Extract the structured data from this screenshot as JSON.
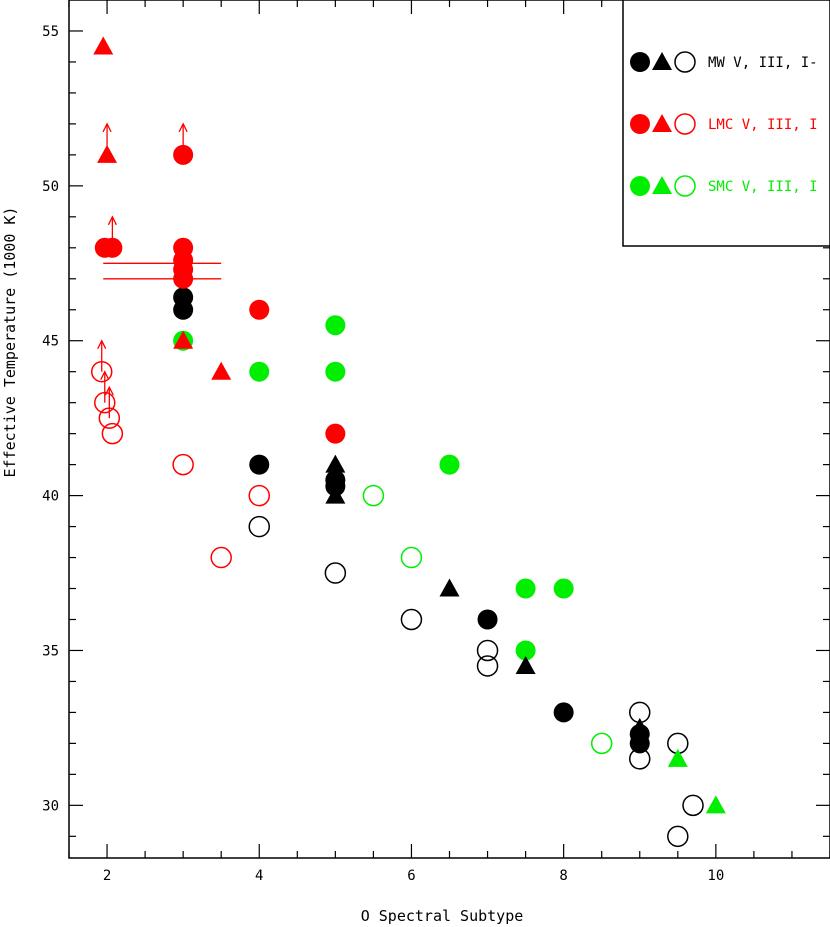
{
  "chart_data": {
    "type": "scatter",
    "title": "",
    "xlabel": "O Spectral Subtype",
    "ylabel": "Effective Temperature (1000 K)",
    "xlim": [
      1.5,
      11.5
    ],
    "ylim": [
      28.3,
      56
    ],
    "x_ticks": [
      2,
      4,
      6,
      8,
      10
    ],
    "y_ticks": [
      30,
      35,
      40,
      45,
      50,
      55
    ],
    "grid": false,
    "legend_position": "top-right",
    "legend": [
      {
        "label": "MW V, III, I-",
        "color": "#000000"
      },
      {
        "label": "LMC V, III, I",
        "color": "#ff0000"
      },
      {
        "label": "SMC V, III, I",
        "color": "#00ee00"
      }
    ],
    "series": [
      {
        "galaxy": "MW",
        "class": "V",
        "marker": "filled-circle",
        "color": "#000000",
        "points": [
          [
            3,
            46
          ],
          [
            3,
            46.4
          ],
          [
            4,
            41
          ],
          [
            5,
            40.5
          ],
          [
            5,
            40.3
          ],
          [
            7,
            36
          ],
          [
            8,
            33
          ],
          [
            9,
            32
          ],
          [
            9,
            32.3
          ]
        ]
      },
      {
        "galaxy": "MW",
        "class": "III",
        "marker": "triangle",
        "color": "#000000",
        "points": [
          [
            5,
            41
          ],
          [
            5,
            40.6
          ],
          [
            5,
            40
          ],
          [
            6.5,
            37
          ],
          [
            7.5,
            34.5
          ],
          [
            9,
            32.5
          ]
        ]
      },
      {
        "galaxy": "MW",
        "class": "I",
        "marker": "open-circle",
        "color": "#000000",
        "points": [
          [
            4,
            39
          ],
          [
            5,
            37.5
          ],
          [
            6,
            36
          ],
          [
            7,
            35
          ],
          [
            7,
            34.5
          ],
          [
            9,
            33
          ],
          [
            9,
            31.5
          ],
          [
            9.5,
            32
          ],
          [
            9.5,
            29
          ],
          [
            9.7,
            30
          ]
        ]
      },
      {
        "galaxy": "LMC",
        "class": "V",
        "marker": "filled-circle",
        "color": "#ff0000",
        "points": [
          [
            1.97,
            48
          ],
          [
            2.07,
            48
          ],
          [
            3,
            51
          ],
          [
            3,
            48
          ],
          [
            3,
            47.6
          ],
          [
            3,
            47.3
          ],
          [
            3,
            47
          ],
          [
            4,
            46
          ],
          [
            5,
            42
          ]
        ]
      },
      {
        "galaxy": "LMC",
        "class": "III",
        "marker": "triangle",
        "color": "#ff0000",
        "points": [
          [
            1.95,
            54.5
          ],
          [
            2,
            51
          ],
          [
            3,
            45
          ],
          [
            3.5,
            44
          ]
        ]
      },
      {
        "galaxy": "LMC",
        "class": "I",
        "marker": "open-circle",
        "color": "#ff0000",
        "points": [
          [
            1.93,
            44
          ],
          [
            1.97,
            43
          ],
          [
            2.03,
            42.5
          ],
          [
            2.07,
            42
          ],
          [
            3,
            41
          ],
          [
            4,
            40
          ],
          [
            3.5,
            38
          ]
        ]
      },
      {
        "galaxy": "SMC",
        "class": "V",
        "marker": "filled-circle",
        "color": "#00ee00",
        "points": [
          [
            3,
            45
          ],
          [
            4,
            44
          ],
          [
            5,
            45.5
          ],
          [
            5,
            44
          ],
          [
            6.5,
            41
          ],
          [
            7.5,
            37
          ],
          [
            8,
            37
          ],
          [
            7.5,
            35
          ]
        ]
      },
      {
        "galaxy": "SMC",
        "class": "III",
        "marker": "triangle",
        "color": "#00ee00",
        "points": [
          [
            9.5,
            31.5
          ],
          [
            10,
            30
          ]
        ]
      },
      {
        "galaxy": "SMC",
        "class": "I",
        "marker": "open-circle",
        "color": "#00ee00",
        "points": [
          [
            5.5,
            40
          ],
          [
            6,
            38
          ],
          [
            8.5,
            32
          ]
        ]
      }
    ],
    "lower_limit_arrows": [
      {
        "x": 2.0,
        "y": 51.0,
        "color": "#ff0000"
      },
      {
        "x": 3.0,
        "y": 51.0,
        "color": "#ff0000"
      },
      {
        "x": 2.07,
        "y": 48.0,
        "color": "#ff0000"
      },
      {
        "x": 1.93,
        "y": 44.0,
        "color": "#ff0000"
      },
      {
        "x": 1.97,
        "y": 43.0,
        "color": "#ff0000"
      },
      {
        "x": 2.03,
        "y": 42.5,
        "color": "#ff0000"
      }
    ],
    "horizontal_bars": [
      {
        "x1": 1.95,
        "x2": 3.5,
        "y": 47.5,
        "color": "#ff0000"
      },
      {
        "x1": 1.95,
        "x2": 3.5,
        "y": 47.0,
        "color": "#ff0000"
      }
    ]
  }
}
